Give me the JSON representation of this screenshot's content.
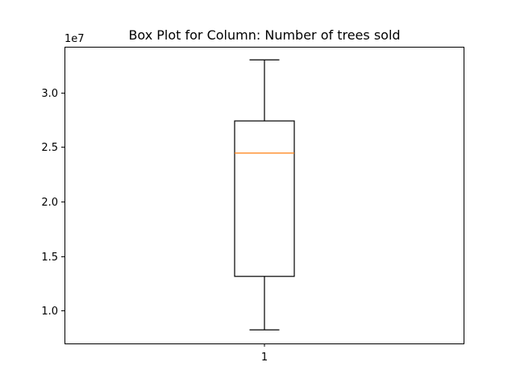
{
  "chart_data": {
    "type": "box",
    "title": "Box Plot for Column: Number of trees sold",
    "xlabel": "",
    "ylabel": "",
    "y_offset_label": "1e7",
    "categories": [
      "1"
    ],
    "ylim": [
      0.7,
      3.42
    ],
    "ytick_values": [
      1.0,
      1.5,
      2.0,
      2.5,
      3.0
    ],
    "yticks": [
      "1.0",
      "1.5",
      "2.0",
      "2.5",
      "3.0"
    ],
    "boxes": [
      {
        "category": "1",
        "whisker_low": 0.825,
        "q1": 1.315,
        "median": 2.445,
        "q3": 2.74,
        "whisker_high": 3.3
      }
    ],
    "grid": false,
    "colors": {
      "box": "#000000",
      "median": "#ff7f0e",
      "axes": "#000000"
    }
  }
}
